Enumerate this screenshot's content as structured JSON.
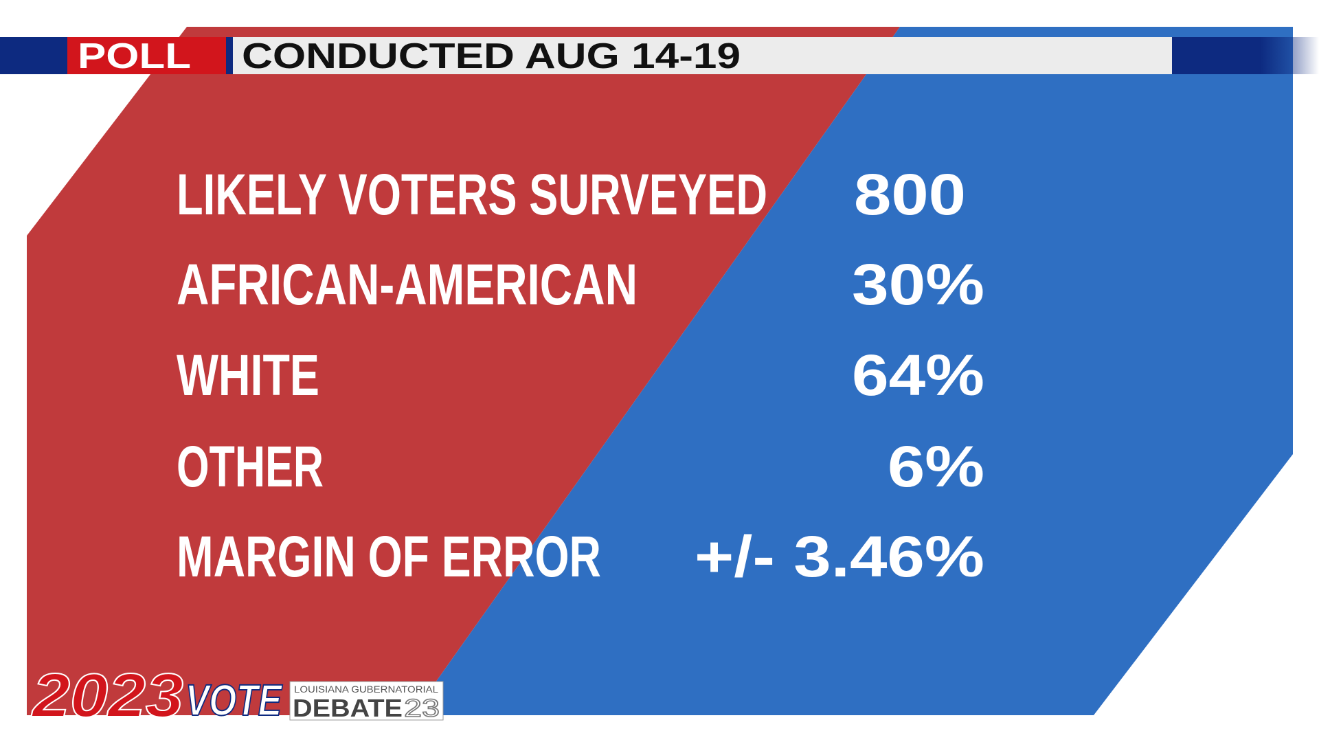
{
  "header": {
    "tag": "POLL",
    "subtitle": "CONDUCTED AUG 14-19"
  },
  "rows": [
    {
      "label": "LIKELY VOTERS SURVEYED",
      "value": "800"
    },
    {
      "label": "AFRICAN-AMERICAN",
      "value": "30%"
    },
    {
      "label": "WHITE",
      "value": "64%"
    },
    {
      "label": "OTHER",
      "value": "6%"
    },
    {
      "label": "MARGIN OF ERROR",
      "value": "+/- 3.46%"
    }
  ],
  "logo": {
    "year": "2023",
    "vote": "VOTE",
    "event": "LOUISIANA GUBERNATORIAL",
    "debate": "DEBATE",
    "debate_year": "23"
  }
}
